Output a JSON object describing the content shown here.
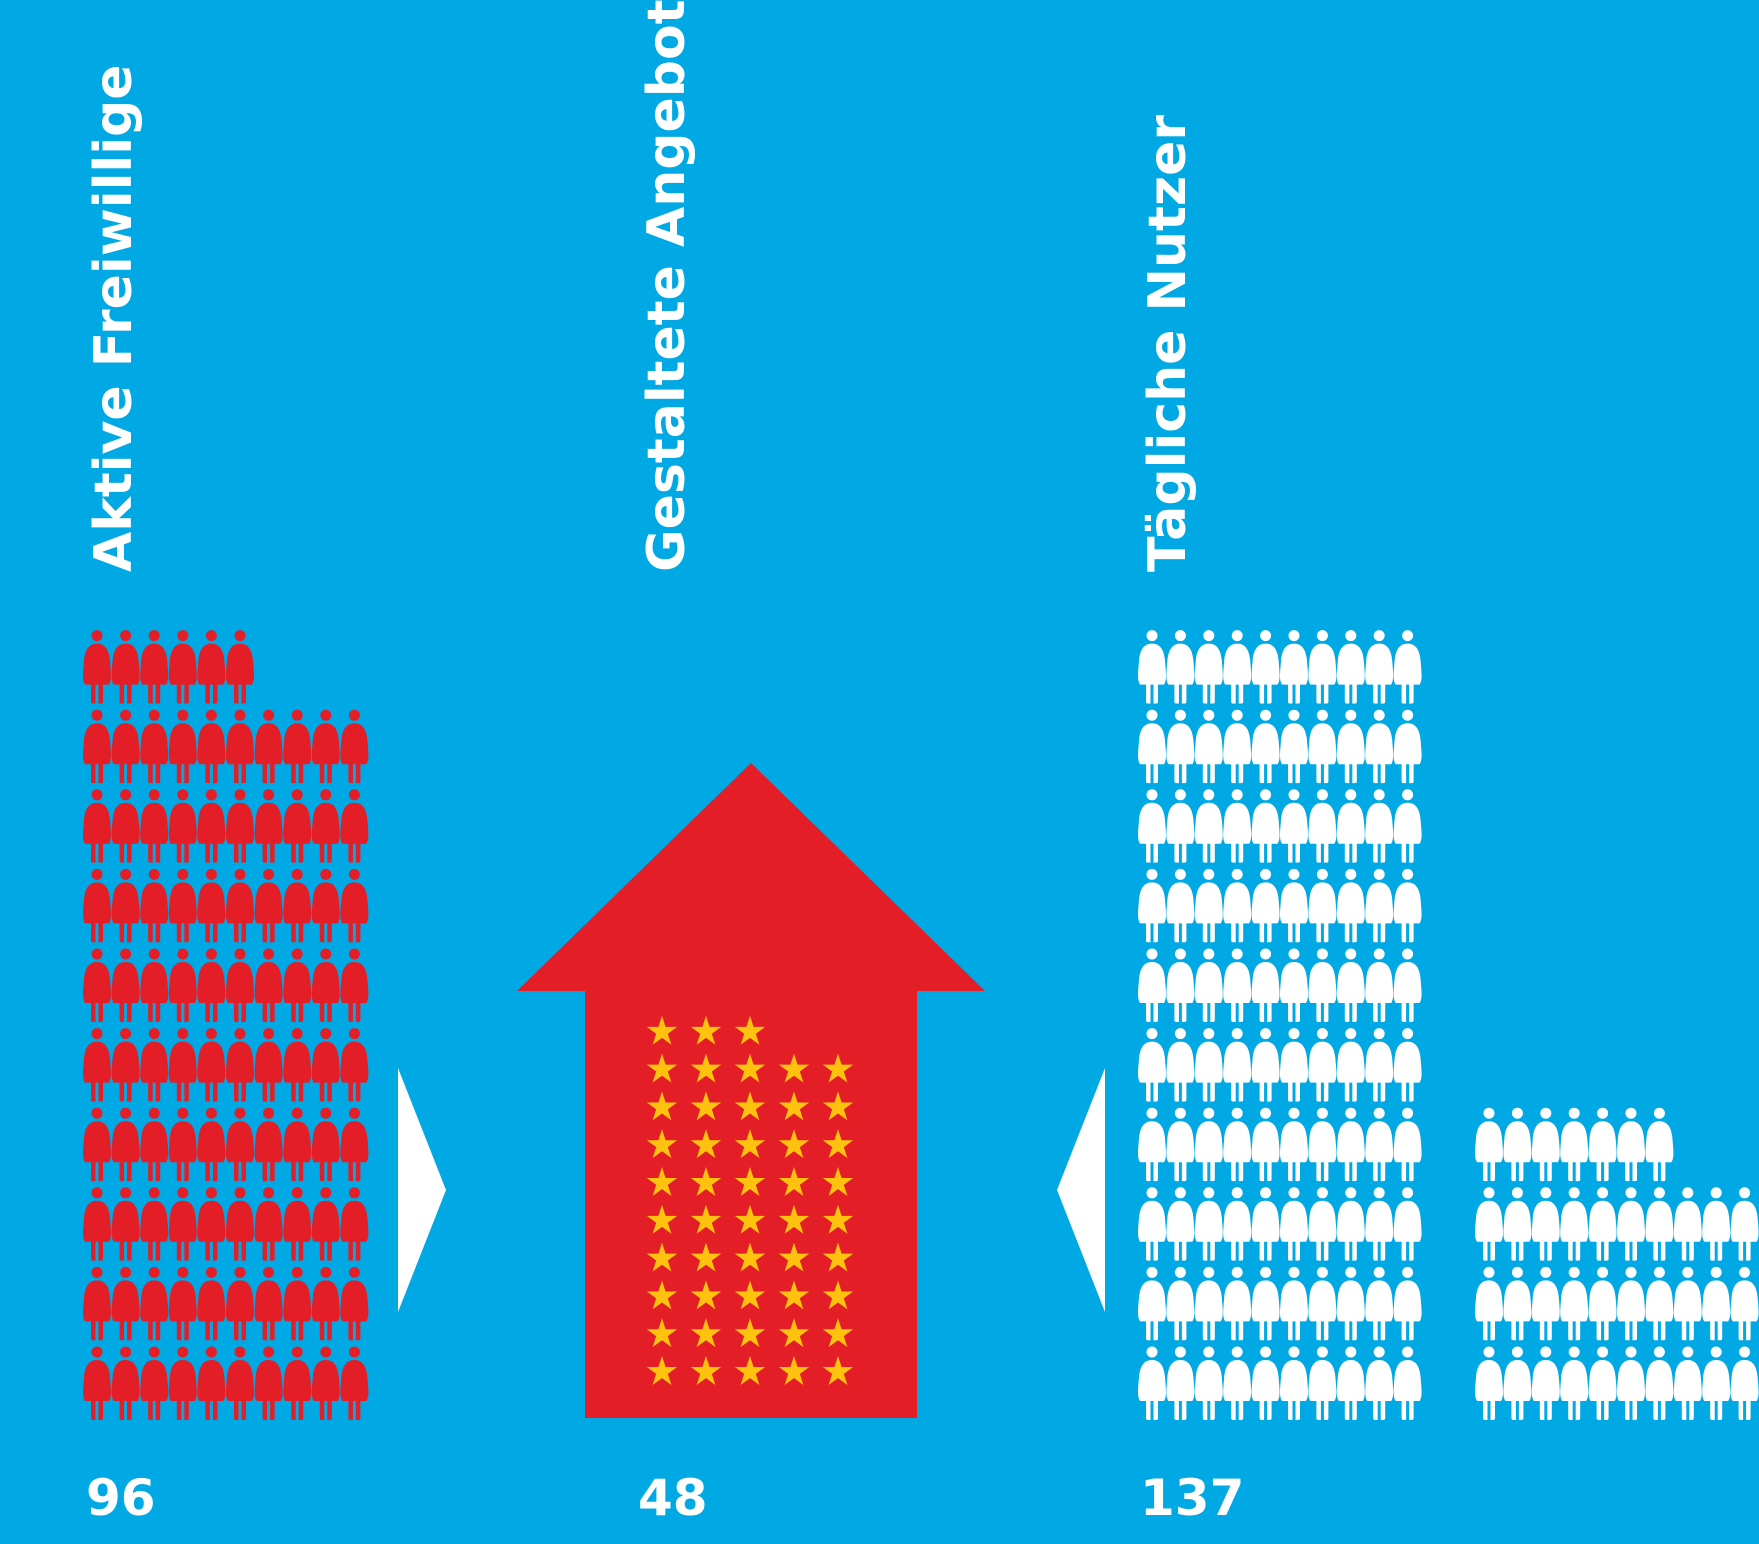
{
  "colors": {
    "background": "#00a8e4",
    "volunteers": "#e31e26",
    "offers_house": "#e31e26",
    "stars": "#ffc20e",
    "users": "#ffffff",
    "arrows": "#ffffff"
  },
  "icons": {
    "volunteers": "person-icon",
    "offers": "star-icon",
    "users": "person-icon",
    "house": "house-arrow-icon",
    "connectors": "triangle-arrow-icon"
  },
  "chart_data": {
    "type": "pictogram",
    "categories": [
      "Aktive Freiwillige",
      "Gestaltete Angebote",
      "Tägliche Nutzer"
    ],
    "values": [
      96,
      48,
      137
    ],
    "series": [
      {
        "label": "Aktive Freiwillige",
        "value": "96",
        "count": 96,
        "per_row": 10,
        "icon": "person-icon",
        "color": "#e31e26"
      },
      {
        "label": "Gestaltete Angebote",
        "value": "48",
        "count": 48,
        "per_row": 5,
        "icon": "star-icon",
        "color": "#ffc20e"
      },
      {
        "label": "Tägliche Nutzer",
        "value": "137",
        "count": 137,
        "per_row": 10,
        "icon": "person-icon",
        "color": "#ffffff"
      }
    ]
  }
}
